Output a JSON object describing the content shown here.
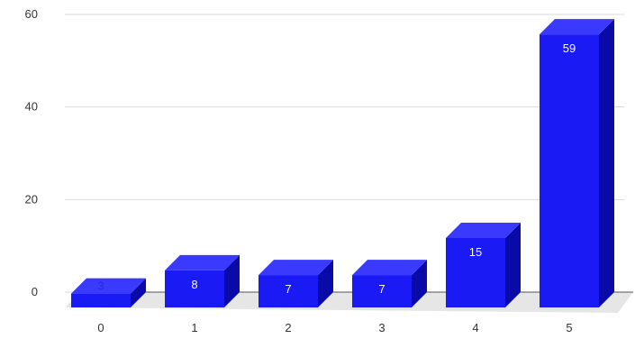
{
  "chart_data": {
    "type": "bar",
    "style": "3d",
    "categories": [
      "0",
      "1",
      "2",
      "3",
      "4",
      "5"
    ],
    "values": [
      3,
      8,
      7,
      7,
      15,
      59
    ],
    "data_labels": [
      "3",
      "8",
      "7",
      "7",
      "15",
      "59"
    ],
    "y_ticks": [
      0,
      20,
      40,
      60
    ],
    "ylim": [
      0,
      60
    ],
    "grid": true,
    "legend": "none",
    "colors": {
      "bar_front": "#1a1af5",
      "bar_top": "#3a3aff",
      "bar_side": "#0a0aa8",
      "label_inside": "#ffffff",
      "label_outside": "#2a2ad0",
      "grid": "#d9d9d9",
      "floor": "#e6e6e6",
      "axis_line": "#555555"
    }
  }
}
